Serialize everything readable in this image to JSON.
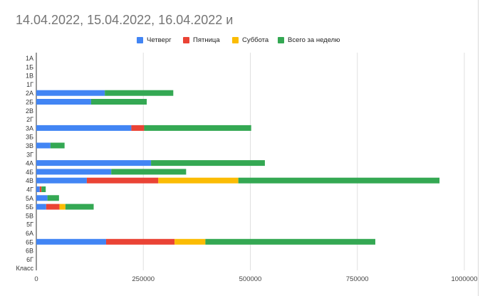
{
  "chart_data": {
    "type": "bar",
    "orientation": "horizontal",
    "stacked": true,
    "title": "14.04.2022, 15.04.2022, 16.04.2022 и",
    "categories": [
      "1А",
      "1Б",
      "1В",
      "1Г",
      "2А",
      "2Б",
      "2В",
      "2Г",
      "3А",
      "3Б",
      "3В",
      "3Г",
      "4А",
      "4Б",
      "4В",
      "4Г",
      "5А",
      "5Б",
      "5В",
      "5Г",
      "6А",
      "6Б",
      "6В",
      "6Г",
      "Класс"
    ],
    "series": [
      {
        "name": "Четверг",
        "color": "#4285f4",
        "values": [
          0,
          0,
          0,
          0,
          160000,
          128000,
          0,
          0,
          222000,
          0,
          33000,
          0,
          268000,
          175000,
          118000,
          8000,
          26000,
          23000,
          0,
          0,
          0,
          163000,
          0,
          0,
          0
        ]
      },
      {
        "name": "Пятница",
        "color": "#ea4335",
        "values": [
          0,
          0,
          0,
          0,
          0,
          0,
          0,
          0,
          30000,
          0,
          0,
          0,
          0,
          0,
          167000,
          4000,
          0,
          31000,
          0,
          0,
          0,
          160000,
          0,
          0,
          0
        ]
      },
      {
        "name": "Суббота",
        "color": "#fbbc04",
        "values": [
          0,
          0,
          0,
          0,
          0,
          0,
          0,
          0,
          0,
          0,
          0,
          0,
          0,
          0,
          187000,
          0,
          0,
          14000,
          0,
          0,
          0,
          72000,
          0,
          0,
          0
        ]
      },
      {
        "name": "Всего за неделю",
        "color": "#34a853",
        "values": [
          0,
          0,
          0,
          0,
          160000,
          130000,
          0,
          0,
          250000,
          0,
          33000,
          0,
          266000,
          175000,
          470000,
          10000,
          27000,
          66000,
          0,
          0,
          0,
          397000,
          0,
          0,
          0
        ]
      }
    ],
    "xlim": [
      0,
      1000000
    ],
    "xticks": [
      "0",
      "250000",
      "500000",
      "750000",
      "1000000"
    ],
    "xtick_values": [
      0,
      250000,
      500000,
      750000,
      1000000
    ],
    "grid": true,
    "legend_position": "top"
  }
}
